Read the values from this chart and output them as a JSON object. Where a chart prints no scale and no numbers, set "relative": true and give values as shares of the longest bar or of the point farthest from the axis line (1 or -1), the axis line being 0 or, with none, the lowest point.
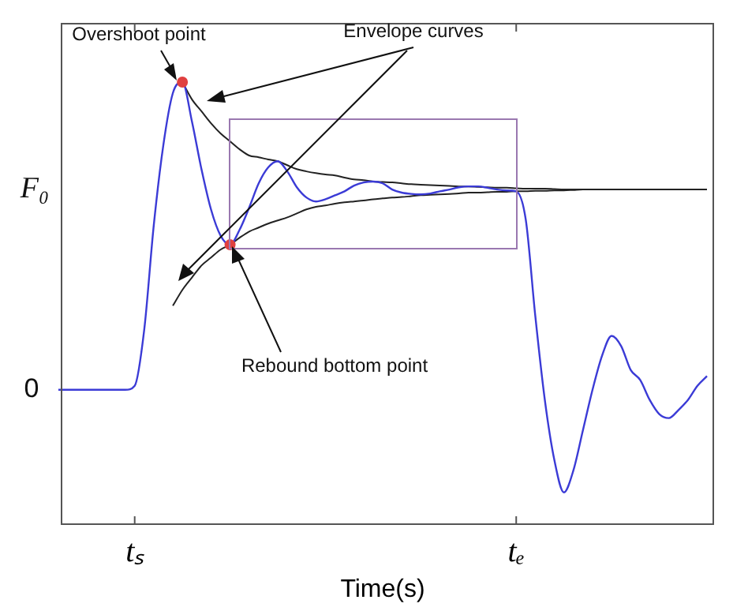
{
  "chart_data": {
    "type": "line",
    "relative": true,
    "xlabel": "Time(s)",
    "categories": [
      null,
      null,
      null,
      null,
      null,
      null,
      null,
      null,
      "tₛ",
      null,
      null,
      null,
      null,
      null,
      null,
      null,
      null,
      null,
      null,
      null,
      null,
      null,
      null,
      null,
      null,
      null,
      null,
      null,
      null,
      null,
      null,
      null,
      null,
      null,
      null,
      null,
      null,
      null,
      null,
      null,
      null,
      null,
      null,
      null,
      null,
      null,
      null,
      null,
      "tₑ",
      null,
      null,
      null,
      null,
      null,
      null,
      null,
      null,
      null,
      null,
      null,
      null,
      null,
      null,
      null,
      null,
      null,
      null,
      null,
      null
    ],
    "grid": false,
    "legend": false,
    "line_style": "solid",
    "series": [
      {
        "type": "line",
        "color": "#3b3bd6",
        "values": [
          0.304,
          0.304,
          0.304,
          0.304,
          0.304,
          0.304,
          0.304,
          0.304,
          0.313,
          0.44,
          0.676,
          0.857,
          0.975,
          1.0,
          0.911,
          0.803,
          0.712,
          0.653,
          0.632,
          0.666,
          0.716,
          0.771,
          0.807,
          0.821,
          0.798,
          0.762,
          0.739,
          0.73,
          0.735,
          0.744,
          0.753,
          0.766,
          0.773,
          0.775,
          0.771,
          0.757,
          0.75,
          0.747,
          0.746,
          0.748,
          0.753,
          0.757,
          0.762,
          0.764,
          0.764,
          0.761,
          0.757,
          0.755,
          0.753,
          0.689,
          0.471,
          0.281,
          0.145,
          0.072,
          0.122,
          0.213,
          0.304,
          0.381,
          0.426,
          0.403,
          0.349,
          0.326,
          0.281,
          0.249,
          0.24,
          0.258,
          0.281,
          0.313,
          0.335
        ]
      },
      {
        "type": "line",
        "color": "#222222",
        "values": [
          null,
          null,
          null,
          null,
          null,
          null,
          null,
          null,
          null,
          null,
          null,
          null,
          null,
          1.0,
          0.961,
          0.934,
          0.907,
          0.884,
          0.866,
          0.848,
          0.834,
          0.83,
          0.825,
          0.821,
          0.812,
          0.803,
          0.798,
          0.794,
          0.791,
          0.789,
          0.784,
          0.78,
          0.778,
          0.775,
          0.774,
          0.773,
          0.771,
          0.769,
          0.768,
          0.767,
          0.766,
          0.765,
          0.764,
          0.764,
          0.763,
          0.762,
          0.761,
          0.761,
          0.76,
          0.759,
          0.759,
          0.759,
          0.758,
          0.757,
          0.757,
          0.757,
          0.757,
          0.757,
          0.757,
          0.757,
          0.757,
          0.757,
          0.757,
          0.757,
          0.757,
          0.757,
          0.757,
          0.757,
          0.757
        ]
      },
      {
        "type": "line",
        "color": "#222222",
        "values": [
          null,
          null,
          null,
          null,
          null,
          null,
          null,
          null,
          null,
          null,
          null,
          null,
          0.494,
          0.53,
          0.558,
          0.585,
          0.603,
          0.621,
          0.632,
          0.648,
          0.662,
          0.671,
          0.68,
          0.687,
          0.694,
          0.703,
          0.712,
          0.718,
          0.721,
          0.725,
          0.728,
          0.73,
          0.732,
          0.735,
          0.737,
          0.739,
          0.74,
          0.742,
          0.744,
          0.745,
          0.746,
          0.747,
          0.748,
          0.75,
          0.75,
          0.751,
          0.752,
          0.752,
          0.753,
          0.753,
          0.754,
          0.754,
          0.755,
          0.755,
          0.756,
          0.757,
          0.757,
          0.757,
          0.757,
          0.757,
          0.757,
          0.757,
          0.757,
          0.757,
          0.757,
          0.757,
          0.757,
          0.757,
          0.757
        ]
      },
      {
        "type": "scatter",
        "color": "#e04040",
        "values": [
          null,
          null,
          null,
          null,
          null,
          null,
          null,
          null,
          null,
          null,
          null,
          null,
          null,
          1.0,
          null,
          null,
          null,
          null,
          0.632,
          null,
          null,
          null,
          null,
          null,
          null,
          null,
          null,
          null,
          null,
          null,
          null,
          null,
          null,
          null,
          null,
          null,
          null,
          null,
          null,
          null,
          null,
          null,
          null,
          null,
          null,
          null,
          null,
          null,
          null,
          null,
          null,
          null,
          null,
          null,
          null,
          null,
          null,
          null,
          null,
          null,
          null,
          null,
          null,
          null,
          null,
          null,
          null,
          null,
          null
        ]
      }
    ],
    "annotations": [
      "Overshoot point",
      "Envelope curves",
      "Rebound bottom point",
      "F₀",
      "0"
    ]
  }
}
